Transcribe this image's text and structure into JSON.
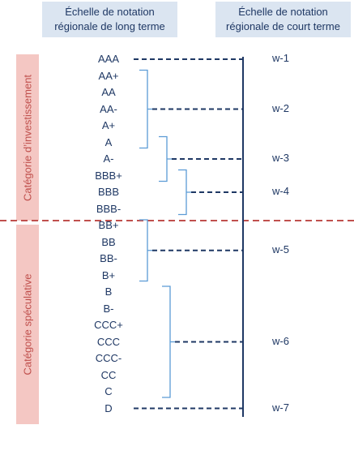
{
  "headers": {
    "long_term": [
      "Échelle de notation",
      "régionale de long terme"
    ],
    "short_term": [
      "Échelle de notation",
      "régionale de court terme"
    ]
  },
  "categories": {
    "investment": "Catégorie  d’investissement",
    "speculative": "Catégorie  spéculative"
  },
  "long_term_ratings": [
    "AAA",
    "AA+",
    "AA",
    "AA-",
    "A+",
    "A",
    "A-",
    "BBB+",
    "BBB",
    "BBB-",
    "BB+",
    "BB",
    "BB-",
    "B+",
    "B",
    "B-",
    "CCC+",
    "CCC",
    "CCC-",
    "CC",
    "C",
    "D"
  ],
  "short_term_ratings": [
    "w-1",
    "w-2",
    "w-3",
    "w-4",
    "w-5",
    "w-6",
    "w-7"
  ],
  "mapping": [
    {
      "short": "w-1",
      "long": [
        "AAA"
      ]
    },
    {
      "short": "w-2",
      "long": [
        "AA+",
        "AA",
        "AA-",
        "A+",
        "A"
      ]
    },
    {
      "short": "w-3",
      "long": [
        "A",
        "A-",
        "BBB+"
      ]
    },
    {
      "short": "w-4",
      "long": [
        "BBB+",
        "BBB",
        "BBB-"
      ]
    },
    {
      "short": "w-5",
      "long": [
        "BB+",
        "BB",
        "BB-",
        "B+"
      ]
    },
    {
      "short": "w-6",
      "long": [
        "B",
        "B-",
        "CCC+",
        "CCC",
        "CCC-",
        "CC",
        "C"
      ]
    },
    {
      "short": "w-7",
      "long": [
        "D"
      ]
    }
  ],
  "colors": {
    "text": "#1f3864",
    "header_bg": "#dbe5f1",
    "category_bg": "#f4c7c3",
    "category_text": "#c0504d",
    "divider": "#c0504d",
    "bracket": "#5b9bd5",
    "connector": "#1f3864"
  }
}
